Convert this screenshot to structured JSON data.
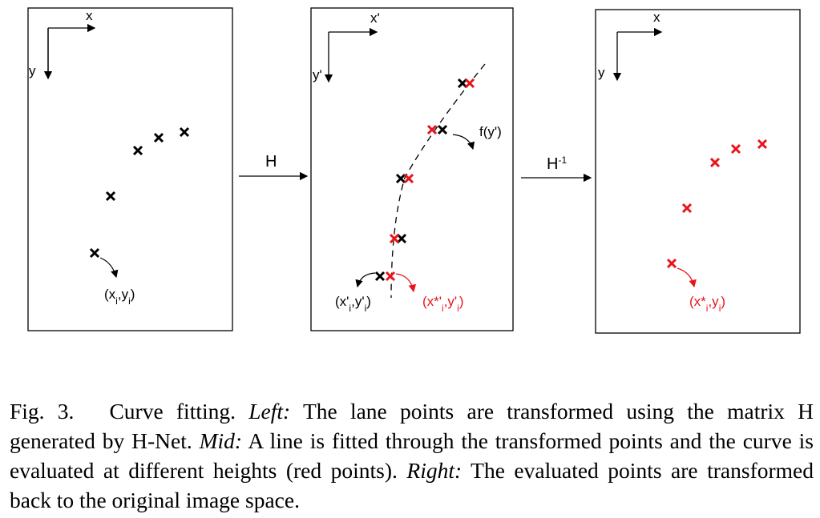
{
  "panels": [
    {
      "x_label": "x",
      "y_label": "y",
      "point_label": [
        {
          "text": "(x"
        },
        {
          "text": "i",
          "sub": true
        },
        {
          "text": ",y"
        },
        {
          "text": "i",
          "sub": true
        },
        {
          "text": ")"
        }
      ]
    },
    {
      "x_label": "x'",
      "y_label": "y'",
      "curve_label": "f(y')",
      "point_label": [
        {
          "text": "(x'"
        },
        {
          "text": "i",
          "sub": true
        },
        {
          "text": ",y'"
        },
        {
          "text": "i",
          "sub": true
        },
        {
          "text": ")"
        }
      ],
      "fitted_label": [
        {
          "text": "(x*'"
        },
        {
          "text": "i",
          "sub": true
        },
        {
          "text": ",y'"
        },
        {
          "text": "i",
          "sub": true
        },
        {
          "text": ")"
        }
      ]
    },
    {
      "x_label": "x",
      "y_label": "y",
      "point_label": [
        {
          "text": "(x*"
        },
        {
          "text": "i",
          "sub": true
        },
        {
          "text": ",y"
        },
        {
          "text": "i",
          "sub": true
        },
        {
          "text": ")"
        }
      ]
    }
  ],
  "transforms": [
    [
      {
        "text": "H"
      }
    ],
    [
      {
        "text": "H"
      },
      {
        "text": "-1",
        "sup": true
      }
    ]
  ],
  "caption": {
    "figure": "Fig. 3.",
    "segments": [
      {
        "text": "Curve fitting. "
      },
      {
        "text": "Left:",
        "italic": true
      },
      {
        "text": " The lane points are transformed using the matrix H generated by H-Net. "
      },
      {
        "text": "Mid:",
        "italic": true
      },
      {
        "text": " A line is fitted through the transformed points and the curve is evaluated at different heights (red points). "
      },
      {
        "text": "Right:",
        "italic": true
      },
      {
        "text": " The evaluated points are transformed back to the original image space."
      }
    ]
  }
}
